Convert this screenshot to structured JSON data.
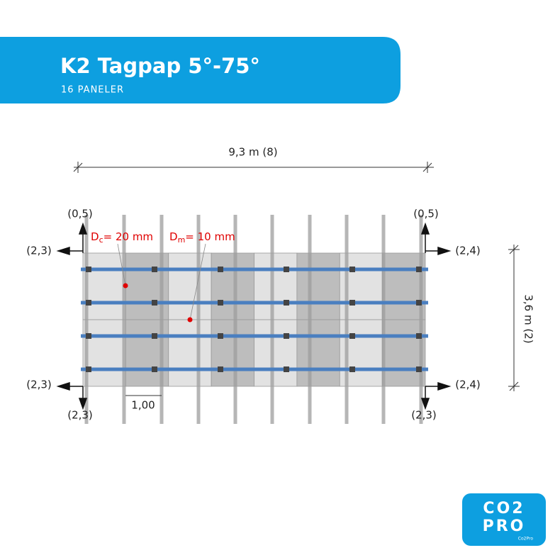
{
  "header": {
    "title": "K2 Tagpap 5°-75°",
    "subtitle": "16 PANELER"
  },
  "dimensions": {
    "width": "9,3 m (8)",
    "height": "3,6 m (2)",
    "spacing": "1,00"
  },
  "corners": {
    "top_left_up": "(0,5)",
    "top_left_side": "(2,3)",
    "bottom_left_side": "(2,3)",
    "bottom_left_down": "(2,3)",
    "top_right_up": "(0,5)",
    "top_right_side": "(2,4)",
    "bottom_right_side": "(2,4)",
    "bottom_right_down": "(2,3)"
  },
  "annotations": [
    {
      "symbol": "D",
      "subscript": "c",
      "text": "= 20 mm"
    },
    {
      "symbol": "D",
      "subscript": "m",
      "text": "= 10 mm"
    }
  ],
  "logo": {
    "line1": "CO2",
    "line2": "PRO",
    "caption": "Co2Pro"
  }
}
